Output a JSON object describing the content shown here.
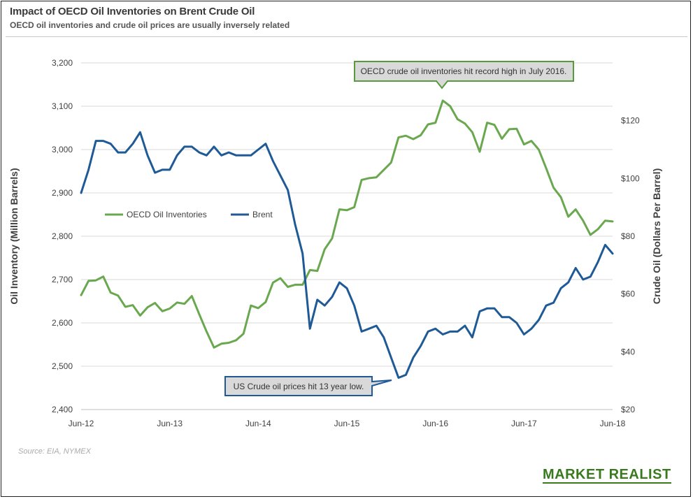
{
  "title": "Impact of OECD Oil Inventories on Brent Crude Oil",
  "subtitle": "OECD oil inventories and crude oil prices are usually inversely related",
  "source": "Source: EIA, NYMEX",
  "brand": "MARKET REALIST",
  "colors": {
    "inventories": "#6aa84f",
    "brent": "#1f5a96",
    "brand": "#3a7a1e",
    "callout_border": "#5a9a3e"
  },
  "annotations": [
    {
      "id": "record-high",
      "text": "OECD crude oil inventories hit record high in July 2016."
    },
    {
      "id": "low-price",
      "text": "US Crude oil prices hit 13 year low."
    }
  ],
  "chart_data": {
    "type": "line",
    "x_tick_labels": [
      "Jun-12",
      "Jun-13",
      "Jun-14",
      "Jun-15",
      "Jun-16",
      "Jun-17",
      "Jun-18"
    ],
    "x_range": [
      "2012-06",
      "2018-06"
    ],
    "ylabel_left": "Oil Inventory  (Million Barrels)",
    "ylabel_right": "Crude Oil (Dollars Per Barrel)",
    "y_left_ticks": [
      "2,400",
      "2,500",
      "2,600",
      "2,700",
      "2,800",
      "2,900",
      "3,000",
      "3,100",
      "3,200"
    ],
    "y_left_range": [
      2400,
      3200
    ],
    "y_right_ticks": [
      "$20",
      "$40",
      "$60",
      "$80",
      "$100",
      "$120"
    ],
    "y_right_range": [
      20,
      140
    ],
    "grid": "horizontal",
    "legend": "upper-left",
    "series": [
      {
        "name": "OECD Oil Inventories",
        "axis": "left",
        "x": [
          "2012-06",
          "2012-07",
          "2012-08",
          "2012-09",
          "2012-10",
          "2012-11",
          "2012-12",
          "2013-01",
          "2013-02",
          "2013-03",
          "2013-04",
          "2013-05",
          "2013-06",
          "2013-07",
          "2013-08",
          "2013-09",
          "2013-10",
          "2013-11",
          "2013-12",
          "2014-01",
          "2014-02",
          "2014-03",
          "2014-04",
          "2014-05",
          "2014-06",
          "2014-07",
          "2014-08",
          "2014-09",
          "2014-10",
          "2014-11",
          "2014-12",
          "2015-01",
          "2015-02",
          "2015-03",
          "2015-04",
          "2015-05",
          "2015-06",
          "2015-07",
          "2015-08",
          "2015-09",
          "2015-10",
          "2015-11",
          "2015-12",
          "2016-01",
          "2016-02",
          "2016-03",
          "2016-04",
          "2016-05",
          "2016-06",
          "2016-07",
          "2016-08",
          "2016-09",
          "2016-10",
          "2016-11",
          "2016-12",
          "2017-01",
          "2017-02",
          "2017-03",
          "2017-04",
          "2017-05",
          "2017-06",
          "2017-07",
          "2017-08",
          "2017-09",
          "2017-10",
          "2017-11",
          "2017-12",
          "2018-01",
          "2018-02",
          "2018-03",
          "2018-04",
          "2018-05",
          "2018-06"
        ],
        "values": [
          2664,
          2697,
          2698,
          2707,
          2670,
          2663,
          2637,
          2641,
          2617,
          2636,
          2646,
          2627,
          2633,
          2647,
          2644,
          2662,
          2620,
          2580,
          2543,
          2552,
          2554,
          2560,
          2575,
          2640,
          2634,
          2648,
          2693,
          2703,
          2683,
          2688,
          2688,
          2722,
          2720,
          2770,
          2795,
          2862,
          2860,
          2867,
          2930,
          2934,
          2936,
          2953,
          2970,
          3028,
          3032,
          3024,
          3033,
          3058,
          3062,
          3113,
          3100,
          3070,
          3060,
          3040,
          2995,
          3062,
          3057,
          3025,
          3047,
          3048,
          3012,
          3020,
          3000,
          2957,
          2912,
          2890,
          2845,
          2862,
          2836,
          2803,
          2816,
          2836,
          2834
        ]
      },
      {
        "name": "Brent",
        "axis": "right",
        "x": [
          "2012-06",
          "2012-07",
          "2012-08",
          "2012-09",
          "2012-10",
          "2012-11",
          "2012-12",
          "2013-01",
          "2013-02",
          "2013-03",
          "2013-04",
          "2013-05",
          "2013-06",
          "2013-07",
          "2013-08",
          "2013-09",
          "2013-10",
          "2013-11",
          "2013-12",
          "2014-01",
          "2014-02",
          "2014-03",
          "2014-04",
          "2014-05",
          "2014-06",
          "2014-07",
          "2014-08",
          "2014-09",
          "2014-10",
          "2014-11",
          "2014-12",
          "2015-01",
          "2015-02",
          "2015-03",
          "2015-04",
          "2015-05",
          "2015-06",
          "2015-07",
          "2015-08",
          "2015-09",
          "2015-10",
          "2015-11",
          "2015-12",
          "2016-01",
          "2016-02",
          "2016-03",
          "2016-04",
          "2016-05",
          "2016-06",
          "2016-07",
          "2016-08",
          "2016-09",
          "2016-10",
          "2016-11",
          "2016-12",
          "2017-01",
          "2017-02",
          "2017-03",
          "2017-04",
          "2017-05",
          "2017-06",
          "2017-07",
          "2017-08",
          "2017-09",
          "2017-10",
          "2017-11",
          "2017-12",
          "2018-01",
          "2018-02",
          "2018-03",
          "2018-04",
          "2018-05",
          "2018-06"
        ],
        "values": [
          95,
          103,
          113,
          113,
          112,
          109,
          109,
          112,
          116,
          108,
          102,
          103,
          103,
          108,
          111,
          111,
          109,
          108,
          111,
          108,
          109,
          108,
          108,
          108,
          110,
          112,
          106,
          101,
          96,
          84,
          74,
          48,
          58,
          56,
          59,
          64,
          62,
          56,
          47,
          48,
          49,
          45,
          38,
          31,
          32,
          38,
          42,
          47,
          48,
          46,
          47,
          47,
          49,
          45,
          54,
          55,
          55,
          52,
          52,
          50,
          46,
          48,
          51,
          56,
          57,
          62,
          64,
          69,
          65,
          66,
          71,
          77,
          74
        ]
      }
    ]
  }
}
